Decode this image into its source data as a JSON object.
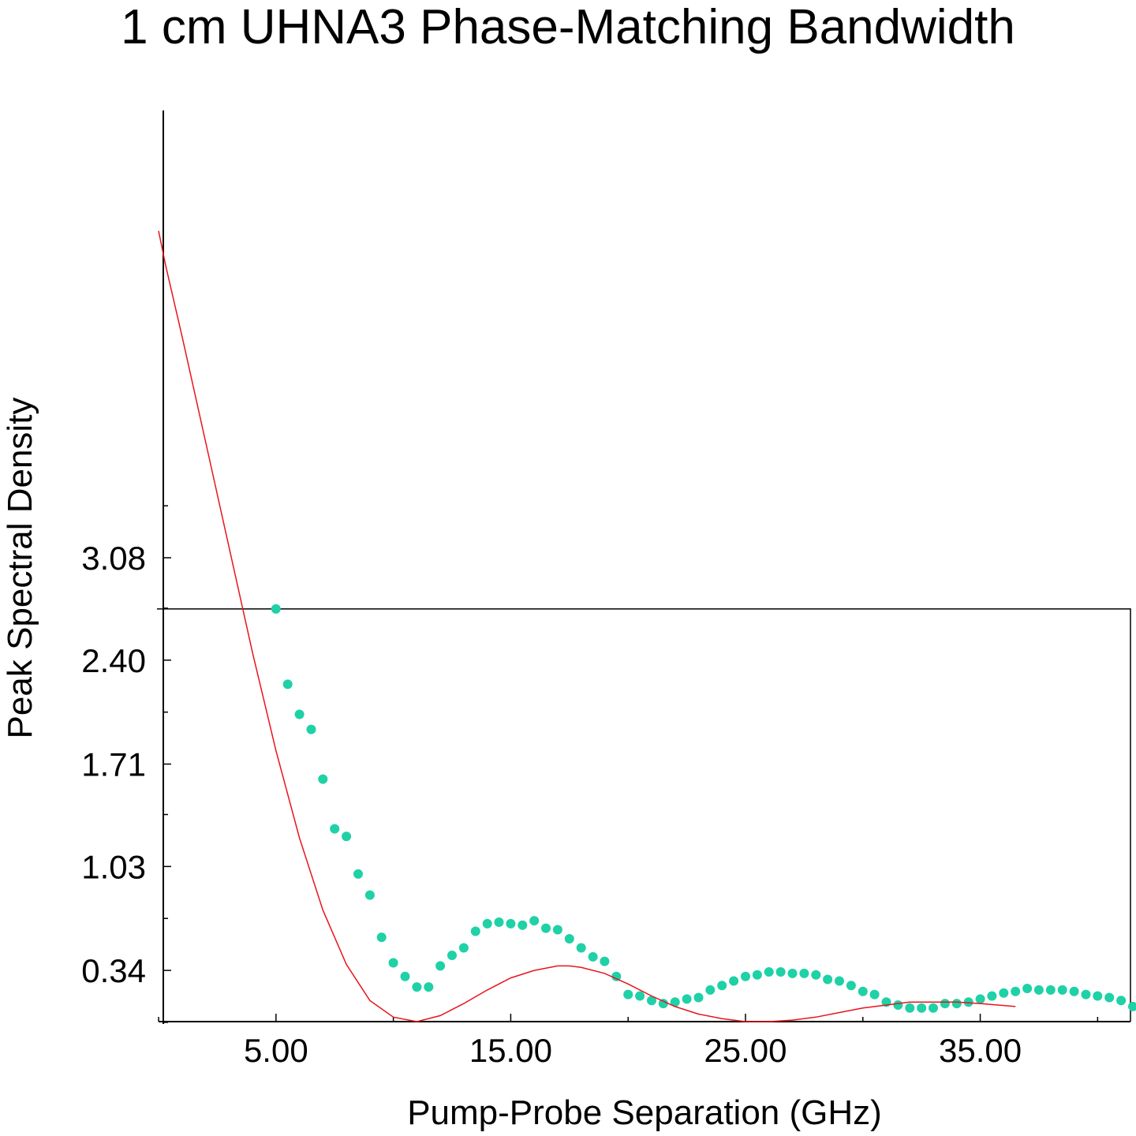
{
  "chart_data": {
    "type": "scatter",
    "title": "1 cm UHNA3 Phase-Matching Bandwidth",
    "xlabel": "Pump-Probe Separation (GHz)",
    "ylabel": "Peak Spectral Density",
    "xlim": [
      0.2,
      41.4
    ],
    "ylim": [
      0.0,
      6.05
    ],
    "x_ticks": [
      5,
      15,
      25,
      35
    ],
    "x_tick_labels": [
      "5.00",
      "15.00",
      "25.00",
      "35.00"
    ],
    "y_ticks": [
      0.34,
      1.03,
      1.71,
      2.4,
      3.08
    ],
    "y_tick_labels": [
      "0.34",
      "1.03",
      "1.71",
      "2.40",
      "3.08"
    ],
    "reference_y": 2.74,
    "grid": false,
    "series": [
      {
        "kind": "scatter",
        "color": "#1fd1a6",
        "points": [
          [
            5.0,
            2.74
          ],
          [
            5.5,
            2.24
          ],
          [
            6.0,
            2.04
          ],
          [
            6.5,
            1.94
          ],
          [
            7.0,
            1.61
          ],
          [
            7.5,
            1.28
          ],
          [
            8.0,
            1.23
          ],
          [
            8.5,
            0.98
          ],
          [
            9.0,
            0.84
          ],
          [
            9.5,
            0.56
          ],
          [
            10.0,
            0.39
          ],
          [
            10.5,
            0.3
          ],
          [
            11.0,
            0.23
          ],
          [
            11.5,
            0.23
          ],
          [
            12.0,
            0.37
          ],
          [
            12.5,
            0.44
          ],
          [
            13.0,
            0.49
          ],
          [
            13.5,
            0.6
          ],
          [
            14.0,
            0.65
          ],
          [
            14.5,
            0.66
          ],
          [
            15.0,
            0.65
          ],
          [
            15.5,
            0.64
          ],
          [
            16.0,
            0.67
          ],
          [
            16.5,
            0.62
          ],
          [
            17.0,
            0.61
          ],
          [
            17.5,
            0.55
          ],
          [
            18.0,
            0.49
          ],
          [
            18.5,
            0.43
          ],
          [
            19.0,
            0.4
          ],
          [
            19.5,
            0.3
          ],
          [
            20.0,
            0.18
          ],
          [
            20.5,
            0.17
          ],
          [
            21.0,
            0.14
          ],
          [
            21.5,
            0.12
          ],
          [
            22.0,
            0.13
          ],
          [
            22.5,
            0.15
          ],
          [
            23.0,
            0.16
          ],
          [
            23.5,
            0.21
          ],
          [
            24.0,
            0.24
          ],
          [
            24.5,
            0.27
          ],
          [
            25.0,
            0.3
          ],
          [
            25.5,
            0.31
          ],
          [
            26.0,
            0.33
          ],
          [
            26.5,
            0.33
          ],
          [
            27.0,
            0.32
          ],
          [
            27.5,
            0.32
          ],
          [
            28.0,
            0.31
          ],
          [
            28.5,
            0.28
          ],
          [
            29.0,
            0.27
          ],
          [
            29.5,
            0.24
          ],
          [
            30.0,
            0.2
          ],
          [
            30.5,
            0.18
          ],
          [
            31.0,
            0.13
          ],
          [
            31.5,
            0.11
          ],
          [
            32.0,
            0.09
          ],
          [
            32.5,
            0.09
          ],
          [
            33.0,
            0.09
          ],
          [
            33.5,
            0.12
          ],
          [
            34.0,
            0.12
          ],
          [
            34.5,
            0.13
          ],
          [
            35.0,
            0.15
          ],
          [
            35.5,
            0.17
          ],
          [
            36.0,
            0.19
          ],
          [
            36.5,
            0.2
          ],
          [
            37.0,
            0.22
          ],
          [
            37.5,
            0.21
          ],
          [
            38.0,
            0.21
          ],
          [
            38.5,
            0.21
          ],
          [
            39.0,
            0.2
          ],
          [
            39.5,
            0.18
          ],
          [
            40.0,
            0.17
          ],
          [
            40.5,
            0.16
          ],
          [
            41.0,
            0.14
          ],
          [
            41.5,
            0.1
          ]
        ]
      },
      {
        "kind": "line",
        "color": "#e8141c",
        "points": [
          [
            0.0,
            5.25
          ],
          [
            0.3,
            5.02
          ],
          [
            1.0,
            4.55
          ],
          [
            2.0,
            3.85
          ],
          [
            3.0,
            3.15
          ],
          [
            4.0,
            2.45
          ],
          [
            5.0,
            1.8
          ],
          [
            6.0,
            1.22
          ],
          [
            7.0,
            0.74
          ],
          [
            8.0,
            0.38
          ],
          [
            9.0,
            0.14
          ],
          [
            10.0,
            0.03
          ],
          [
            11.0,
            0.0
          ],
          [
            12.0,
            0.04
          ],
          [
            13.0,
            0.12
          ],
          [
            14.0,
            0.21
          ],
          [
            15.0,
            0.29
          ],
          [
            16.0,
            0.34
          ],
          [
            17.0,
            0.37
          ],
          [
            17.5,
            0.37
          ],
          [
            18.0,
            0.36
          ],
          [
            19.0,
            0.32
          ],
          [
            20.0,
            0.25
          ],
          [
            21.0,
            0.17
          ],
          [
            22.0,
            0.1
          ],
          [
            23.0,
            0.05
          ],
          [
            24.0,
            0.02
          ],
          [
            25.0,
            0.0
          ],
          [
            26.0,
            0.0
          ],
          [
            27.0,
            0.01
          ],
          [
            28.0,
            0.03
          ],
          [
            29.0,
            0.06
          ],
          [
            30.0,
            0.09
          ],
          [
            31.0,
            0.11
          ],
          [
            32.0,
            0.13
          ],
          [
            33.0,
            0.13
          ],
          [
            34.0,
            0.13
          ],
          [
            35.0,
            0.12
          ],
          [
            36.5,
            0.1
          ]
        ]
      }
    ]
  }
}
